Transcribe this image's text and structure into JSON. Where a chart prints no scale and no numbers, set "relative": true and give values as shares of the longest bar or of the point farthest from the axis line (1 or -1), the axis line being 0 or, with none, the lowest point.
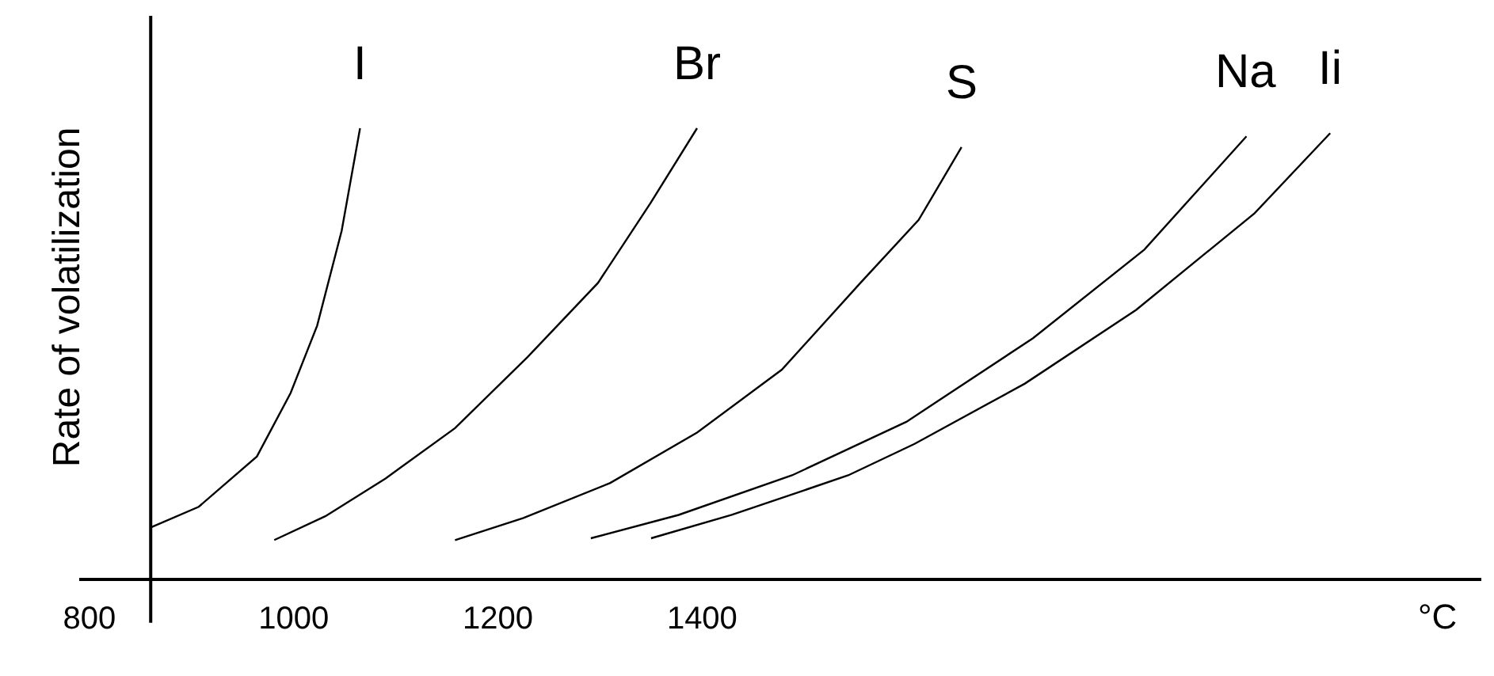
{
  "chart_data": {
    "type": "line",
    "relative": true,
    "xlabel": "°C",
    "ylabel": "Rate of volatilization",
    "xlim": [
      790,
      2163
    ],
    "xticks": [
      800,
      1000,
      1200,
      1400
    ],
    "ref_lines": [
      {
        "axis": "x",
        "value": 860,
        "color": "#000000"
      }
    ],
    "legend": false,
    "marker": "none",
    "line_style": "solid",
    "series": [
      {
        "name": "I",
        "color": "#000000",
        "x": [
          860,
          907,
          964,
          997,
          1023,
          1047,
          1065
        ],
        "values": [
          0.112,
          0.158,
          0.27,
          0.411,
          0.561,
          0.772,
          1.0
        ]
      },
      {
        "name": "Br",
        "color": "#000000",
        "x": [
          981,
          1031,
          1090,
          1158,
          1229,
          1298,
          1349,
          1395
        ],
        "values": [
          0.084,
          0.137,
          0.221,
          0.333,
          0.491,
          0.656,
          0.832,
          1.0
        ]
      },
      {
        "name": "S",
        "color": "#000000",
        "x": [
          1158,
          1225,
          1310,
          1395,
          1478,
          1555,
          1612,
          1654
        ],
        "values": [
          0.084,
          0.133,
          0.211,
          0.323,
          0.463,
          0.656,
          0.796,
          0.958
        ]
      },
      {
        "name": "Na",
        "color": "#000000",
        "x": [
          1291,
          1377,
          1488,
          1600,
          1724,
          1833,
          1933
        ],
        "values": [
          0.088,
          0.14,
          0.228,
          0.347,
          0.533,
          0.73,
          0.982
        ]
      },
      {
        "name": "Ii",
        "color": "#000000",
        "x": [
          1350,
          1429,
          1543,
          1608,
          1716,
          1825,
          1941,
          2015
        ],
        "values": [
          0.088,
          0.14,
          0.228,
          0.298,
          0.432,
          0.596,
          0.811,
          0.989
        ]
      }
    ]
  }
}
